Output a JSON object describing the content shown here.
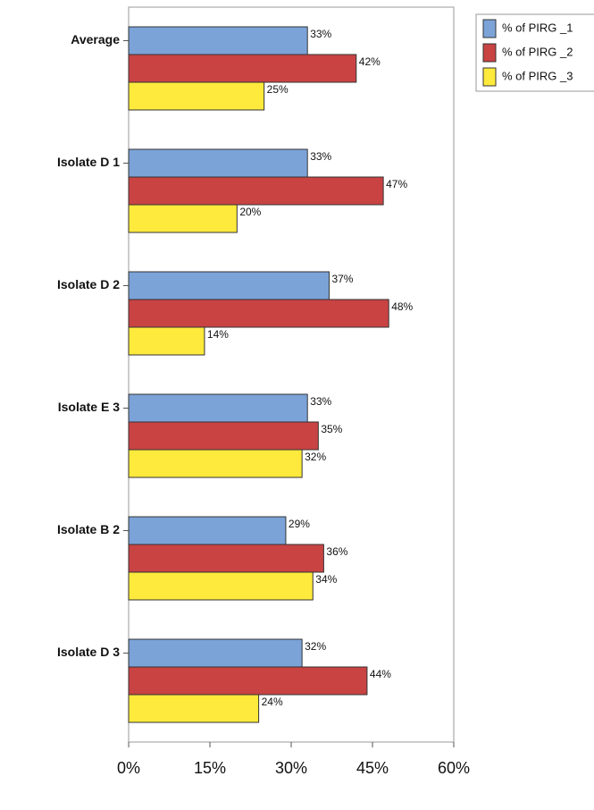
{
  "chart_data": {
    "type": "bar",
    "orientation": "horizontal",
    "categories": [
      "Average",
      "Isolate D 1",
      "Isolate D 2",
      "Isolate E 3",
      "Isolate B 2",
      "Isolate D 3"
    ],
    "series": [
      {
        "name": "% of PIRG _1",
        "color": "#7ba3d8",
        "values": [
          33,
          33,
          37,
          33,
          29,
          32
        ],
        "value_labels": [
          "33%",
          "33%",
          "37%",
          "33%",
          "29%",
          "32%"
        ]
      },
      {
        "name": "% of PIRG _2",
        "color": "#c94343",
        "values": [
          42,
          47,
          48,
          35,
          36,
          44
        ],
        "value_labels": [
          "42%",
          "47%",
          "48%",
          "35%",
          "36%",
          "44%"
        ]
      },
      {
        "name": "% of PIRG _3",
        "color": "#fdea3c",
        "values": [
          25,
          20,
          14,
          32,
          34,
          24
        ],
        "value_labels": [
          "25%",
          "20%",
          "14%",
          "32%",
          "34%",
          "24%"
        ]
      }
    ],
    "xlim": [
      0,
      60
    ],
    "xticks": [
      {
        "value": 0,
        "label": "0%"
      },
      {
        "value": 15,
        "label": "15%"
      },
      {
        "value": 30,
        "label": "30%"
      },
      {
        "value": 45,
        "label": "45%"
      },
      {
        "value": 60,
        "label": "60%"
      }
    ],
    "legend": "top-right"
  }
}
